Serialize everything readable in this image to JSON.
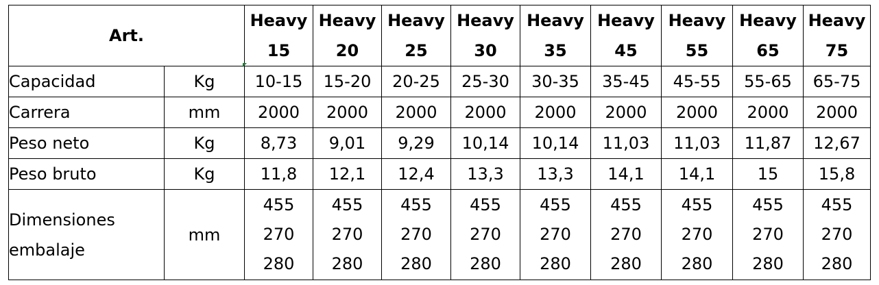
{
  "table": {
    "corner_label": "Art.",
    "models": [
      {
        "name": "Heavy",
        "number": "15"
      },
      {
        "name": "Heavy",
        "number": "20"
      },
      {
        "name": "Heavy",
        "number": "25"
      },
      {
        "name": "Heavy",
        "number": "30"
      },
      {
        "name": "Heavy",
        "number": "35"
      },
      {
        "name": "Heavy",
        "number": "45"
      },
      {
        "name": "Heavy",
        "number": "55"
      },
      {
        "name": "Heavy",
        "number": "65"
      },
      {
        "name": "Heavy",
        "number": "75"
      }
    ],
    "rows": [
      {
        "label": "Capacidad",
        "unit": "Kg",
        "values": [
          "10-15",
          "15-20",
          "20-25",
          "25-30",
          "30-35",
          "35-45",
          "45-55",
          "55-65",
          "65-75"
        ]
      },
      {
        "label": "Carrera",
        "unit": "mm",
        "values": [
          "2000",
          "2000",
          "2000",
          "2000",
          "2000",
          "2000",
          "2000",
          "2000",
          "2000"
        ]
      },
      {
        "label": "Peso neto",
        "unit": "Kg",
        "values": [
          "8,73",
          "9,01",
          "9,29",
          "10,14",
          "10,14",
          "11,03",
          "11,03",
          "11,87",
          "12,67"
        ]
      },
      {
        "label": "Peso bruto",
        "unit": "Kg",
        "values": [
          "11,8",
          "12,1",
          "12,4",
          "13,3",
          "13,3",
          "14,1",
          "14,1",
          "15",
          "15,8"
        ]
      }
    ],
    "dimensions_row": {
      "label": "Dimensiones embalaje",
      "unit": "mm",
      "values": [
        [
          "455",
          "270",
          "280"
        ],
        [
          "455",
          "270",
          "280"
        ],
        [
          "455",
          "270",
          "280"
        ],
        [
          "455",
          "270",
          "280"
        ],
        [
          "455",
          "270",
          "280"
        ],
        [
          "455",
          "270",
          "280"
        ],
        [
          "455",
          "270",
          "280"
        ],
        [
          "455",
          "270",
          "280"
        ],
        [
          "455",
          "270",
          "280"
        ]
      ]
    }
  }
}
